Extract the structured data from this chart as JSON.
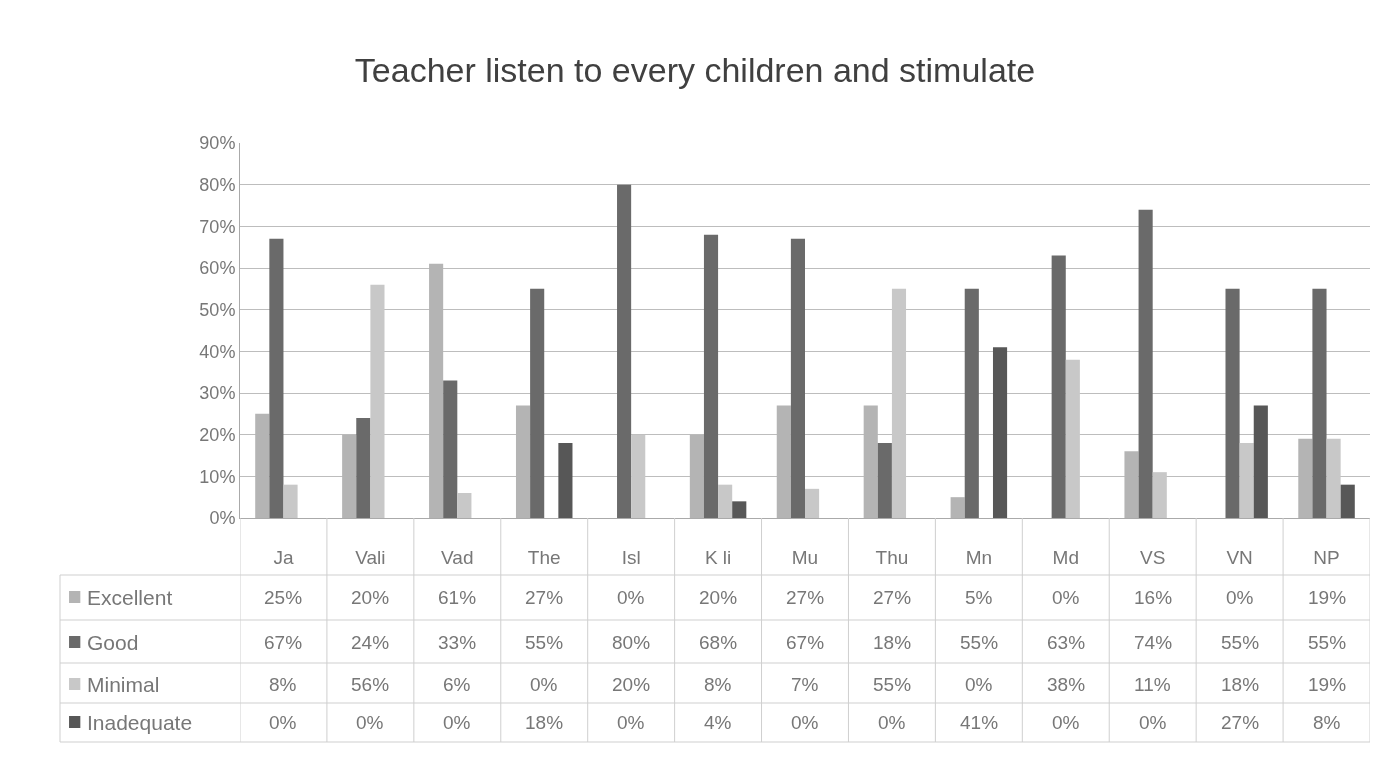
{
  "chart_data": {
    "type": "bar",
    "title": "Teacher listen to every children and stimulate",
    "categories": [
      "Ja",
      "Vali",
      "Vad",
      "The",
      "Isl",
      "K li",
      "Mu",
      "Thu",
      "Mn",
      "Md",
      "VS",
      "VN",
      "NP"
    ],
    "series": [
      {
        "name": "Excellent",
        "color": "#b4b4b4",
        "values": [
          25,
          20,
          61,
          27,
          0,
          20,
          27,
          27,
          5,
          0,
          16,
          0,
          19
        ],
        "value_labels": [
          "25%",
          "20%",
          "61%",
          "27%",
          "0%",
          "20%",
          "27%",
          "27%",
          "5%",
          "0%",
          "16%",
          "0%",
          "19%"
        ]
      },
      {
        "name": "Good",
        "color": "#6a6a6a",
        "values": [
          67,
          24,
          33,
          55,
          80,
          68,
          67,
          18,
          55,
          63,
          74,
          55,
          55
        ],
        "value_labels": [
          "67%",
          "24%",
          "33%",
          "55%",
          "80%",
          "68%",
          "67%",
          "18%",
          "55%",
          "63%",
          "74%",
          "55%",
          "55%"
        ]
      },
      {
        "name": "Minimal",
        "color": "#c8c8c8",
        "values": [
          8,
          56,
          6,
          0,
          20,
          8,
          7,
          55,
          0,
          38,
          11,
          18,
          19
        ],
        "value_labels": [
          "8%",
          "56%",
          "6%",
          "0%",
          "20%",
          "8%",
          "7%",
          "55%",
          "0%",
          "38%",
          "11%",
          "18%",
          "19%"
        ]
      },
      {
        "name": "Inadequate",
        "color": "#575757",
        "values": [
          0,
          0,
          0,
          18,
          0,
          4,
          0,
          0,
          41,
          0,
          0,
          27,
          8
        ],
        "value_labels": [
          "0%",
          "0%",
          "0%",
          "18%",
          "0%",
          "4%",
          "0%",
          "0%",
          "41%",
          "0%",
          "0%",
          "27%",
          "8%"
        ]
      }
    ],
    "ylim": [
      0,
      90
    ],
    "yticks": [
      {
        "value": 0,
        "label": "0%"
      },
      {
        "value": 10,
        "label": "10%"
      },
      {
        "value": 20,
        "label": "20%"
      },
      {
        "value": 30,
        "label": "30%"
      },
      {
        "value": 40,
        "label": "40%"
      },
      {
        "value": 50,
        "label": "50%"
      },
      {
        "value": 60,
        "label": "60%"
      },
      {
        "value": 70,
        "label": "70%"
      },
      {
        "value": 80,
        "label": "80%"
      },
      {
        "value": 90,
        "label": "90%"
      }
    ],
    "grid": "y",
    "legend": "bottom"
  }
}
